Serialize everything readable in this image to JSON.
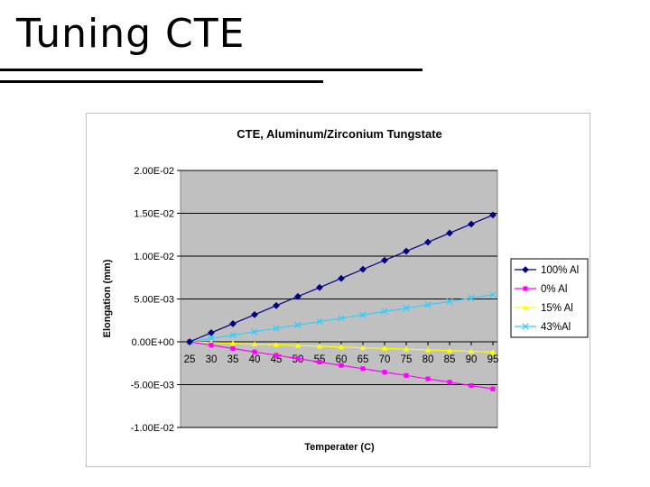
{
  "slide": {
    "title": "Tuning CTE"
  },
  "chart_data": {
    "type": "line",
    "title": "CTE, Aluminum/Zirconium Tungstate",
    "xlabel": "Temperater (C)",
    "ylabel": "Elongation (mm)",
    "categories": [
      "25",
      "30",
      "35",
      "40",
      "45",
      "50",
      "55",
      "60",
      "65",
      "70",
      "75",
      "80",
      "85",
      "90",
      "95"
    ],
    "ylim": [
      -0.01,
      0.02
    ],
    "yticks": [
      -0.01,
      -0.005,
      0,
      0.005,
      0.01,
      0.015,
      0.02
    ],
    "ytick_labels": [
      "-1.00E-02",
      "-5.00E-03",
      "0.00E+00",
      "5.00E-03",
      "1.00E-02",
      "1.50E-02",
      "2.00E-02"
    ],
    "grid": "horizontal",
    "legend_position": "right",
    "series": [
      {
        "name": "100% Al",
        "color": "#000080",
        "marker": "diamond",
        "values": [
          0,
          0.00106,
          0.00211,
          0.00317,
          0.00423,
          0.00529,
          0.00634,
          0.0074,
          0.00846,
          0.00951,
          0.01057,
          0.01163,
          0.01269,
          0.01374,
          0.0148
        ]
      },
      {
        "name": "0% Al",
        "color": "#ff00ff",
        "marker": "square",
        "values": [
          0,
          -0.00039,
          -0.00079,
          -0.00118,
          -0.00157,
          -0.00196,
          -0.00236,
          -0.00275,
          -0.00314,
          -0.00354,
          -0.00393,
          -0.00432,
          -0.00471,
          -0.00511,
          -0.0055
        ]
      },
      {
        "name": "15% Al",
        "color": "#ffff00",
        "marker": "triangle",
        "values": [
          0,
          -9e-05,
          -0.00017,
          -0.00026,
          -0.00034,
          -0.00043,
          -0.00051,
          -0.0006,
          -0.00069,
          -0.00077,
          -0.00086,
          -0.00094,
          -0.00103,
          -0.00111,
          -0.0012
        ]
      },
      {
        "name": "43%Al",
        "color": "#33ccff",
        "marker": "x",
        "values": [
          0,
          0.00039,
          0.00079,
          0.00118,
          0.00157,
          0.00196,
          0.00236,
          0.00275,
          0.00314,
          0.00354,
          0.00393,
          0.00432,
          0.00471,
          0.00511,
          0.0055
        ]
      }
    ]
  }
}
